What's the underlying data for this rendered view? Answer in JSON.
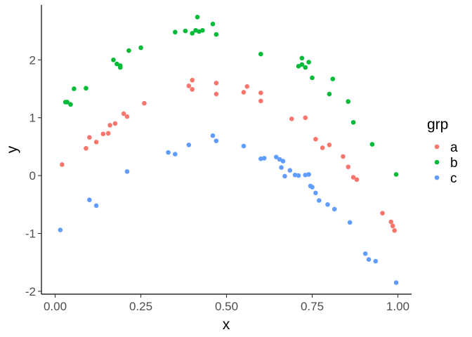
{
  "chart_data": {
    "type": "scatter",
    "title": "",
    "xlabel": "x",
    "ylabel": "y",
    "xlim": [
      -0.04,
      1.04
    ],
    "ylim": [
      -2.05,
      2.95
    ],
    "x_ticks": [
      0.0,
      0.25,
      0.5,
      0.75,
      1.0
    ],
    "x_tick_labels": [
      "0.00",
      "0.25",
      "0.50",
      "0.75",
      "1.00"
    ],
    "y_ticks": [
      -2,
      -1,
      0,
      1,
      2
    ],
    "y_tick_labels": [
      "-2",
      "-1",
      "0",
      "1",
      "2"
    ],
    "grid": false,
    "legend": {
      "title": "grp",
      "position": "right"
    },
    "series": [
      {
        "name": "a",
        "color": "#F8766D",
        "points": [
          [
            0.02,
            0.19
          ],
          [
            0.09,
            0.47
          ],
          [
            0.1,
            0.66
          ],
          [
            0.12,
            0.58
          ],
          [
            0.14,
            0.72
          ],
          [
            0.155,
            0.73
          ],
          [
            0.16,
            0.87
          ],
          [
            0.175,
            0.9
          ],
          [
            0.2,
            1.07
          ],
          [
            0.21,
            1.02
          ],
          [
            0.26,
            1.25
          ],
          [
            0.39,
            1.55
          ],
          [
            0.4,
            1.49
          ],
          [
            0.4,
            1.65
          ],
          [
            0.47,
            1.41
          ],
          [
            0.47,
            1.6
          ],
          [
            0.55,
            1.44
          ],
          [
            0.56,
            1.54
          ],
          [
            0.6,
            1.43
          ],
          [
            0.6,
            1.29
          ],
          [
            0.69,
            0.98
          ],
          [
            0.73,
            1.0
          ],
          [
            0.76,
            0.63
          ],
          [
            0.78,
            0.48
          ],
          [
            0.8,
            0.53
          ],
          [
            0.84,
            0.33
          ],
          [
            0.855,
            0.15
          ],
          [
            0.87,
            -0.03
          ],
          [
            0.88,
            -0.07
          ],
          [
            0.955,
            -0.65
          ],
          [
            0.98,
            -0.8
          ],
          [
            0.985,
            -0.87
          ],
          [
            0.99,
            -0.95
          ]
        ]
      },
      {
        "name": "b",
        "color": "#00BA38",
        "points": [
          [
            0.03,
            1.27
          ],
          [
            0.035,
            1.27
          ],
          [
            0.045,
            1.23
          ],
          [
            0.055,
            1.5
          ],
          [
            0.09,
            1.51
          ],
          [
            0.17,
            2.0
          ],
          [
            0.18,
            1.93
          ],
          [
            0.19,
            1.87
          ],
          [
            0.19,
            1.9
          ],
          [
            0.215,
            2.16
          ],
          [
            0.25,
            2.21
          ],
          [
            0.35,
            2.48
          ],
          [
            0.38,
            2.5
          ],
          [
            0.4,
            2.46
          ],
          [
            0.41,
            2.51
          ],
          [
            0.415,
            2.74
          ],
          [
            0.42,
            2.49
          ],
          [
            0.43,
            2.51
          ],
          [
            0.46,
            2.62
          ],
          [
            0.47,
            2.44
          ],
          [
            0.6,
            2.1
          ],
          [
            0.71,
            1.89
          ],
          [
            0.72,
            1.92
          ],
          [
            0.72,
            2.03
          ],
          [
            0.73,
            1.87
          ],
          [
            0.74,
            1.96
          ],
          [
            0.75,
            1.69
          ],
          [
            0.8,
            1.41
          ],
          [
            0.81,
            1.67
          ],
          [
            0.855,
            1.28
          ],
          [
            0.87,
            0.92
          ],
          [
            0.925,
            0.54
          ],
          [
            0.995,
            0.02
          ]
        ]
      },
      {
        "name": "c",
        "color": "#619CFF",
        "points": [
          [
            0.015,
            -0.94
          ],
          [
            0.1,
            -0.42
          ],
          [
            0.12,
            -0.52
          ],
          [
            0.21,
            0.07
          ],
          [
            0.33,
            0.4
          ],
          [
            0.35,
            0.37
          ],
          [
            0.39,
            0.53
          ],
          [
            0.46,
            0.69
          ],
          [
            0.47,
            0.6
          ],
          [
            0.55,
            0.51
          ],
          [
            0.6,
            0.29
          ],
          [
            0.61,
            0.3
          ],
          [
            0.645,
            0.32
          ],
          [
            0.655,
            0.28
          ],
          [
            0.66,
            0.14
          ],
          [
            0.665,
            0.25
          ],
          [
            0.67,
            -0.01
          ],
          [
            0.685,
            0.09
          ],
          [
            0.7,
            0.01
          ],
          [
            0.71,
            0.0
          ],
          [
            0.73,
            0.01
          ],
          [
            0.74,
            0.02
          ],
          [
            0.745,
            -0.18
          ],
          [
            0.75,
            -0.2
          ],
          [
            0.76,
            -0.3
          ],
          [
            0.77,
            -0.43
          ],
          [
            0.795,
            -0.5
          ],
          [
            0.815,
            -0.58
          ],
          [
            0.86,
            -0.81
          ],
          [
            0.905,
            -1.35
          ],
          [
            0.915,
            -1.45
          ],
          [
            0.935,
            -1.48
          ],
          [
            0.995,
            -1.85
          ]
        ]
      }
    ]
  }
}
